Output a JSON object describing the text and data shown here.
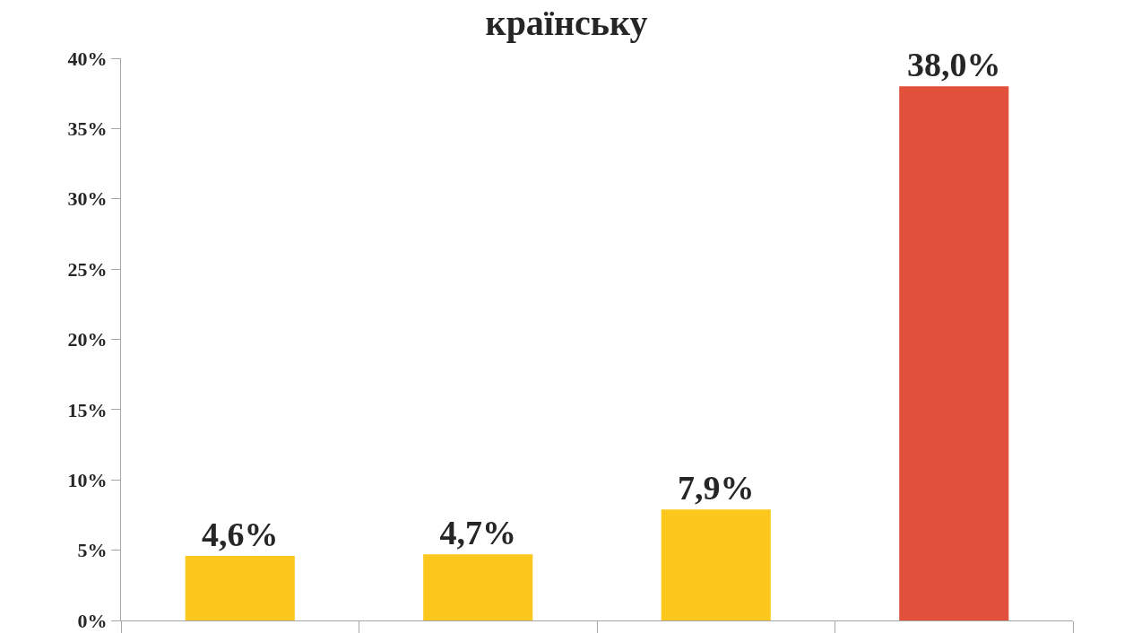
{
  "chart_data": {
    "type": "bar",
    "title": "країнську",
    "categories": [
      null,
      null,
      null,
      null
    ],
    "values": [
      4.6,
      4.7,
      7.9,
      38.0
    ],
    "colors": [
      "#fdc81e",
      "#fdc81e",
      "#fdc81e",
      "#e0503a"
    ],
    "value_labels": [
      "4,6%",
      "4,7%",
      "7,9%",
      "38,0%"
    ],
    "ylim": [
      0,
      40
    ],
    "yticks": [
      {
        "value": 0,
        "label": "0%"
      },
      {
        "value": 5,
        "label": "5%"
      },
      {
        "value": 10,
        "label": "10%"
      },
      {
        "value": 15,
        "label": "15%"
      },
      {
        "value": 20,
        "label": "20%"
      },
      {
        "value": 25,
        "label": "25%"
      },
      {
        "value": 30,
        "label": "30%"
      },
      {
        "value": 35,
        "label": "35%"
      },
      {
        "value": 40,
        "label": "40%"
      }
    ],
    "grid": false
  }
}
